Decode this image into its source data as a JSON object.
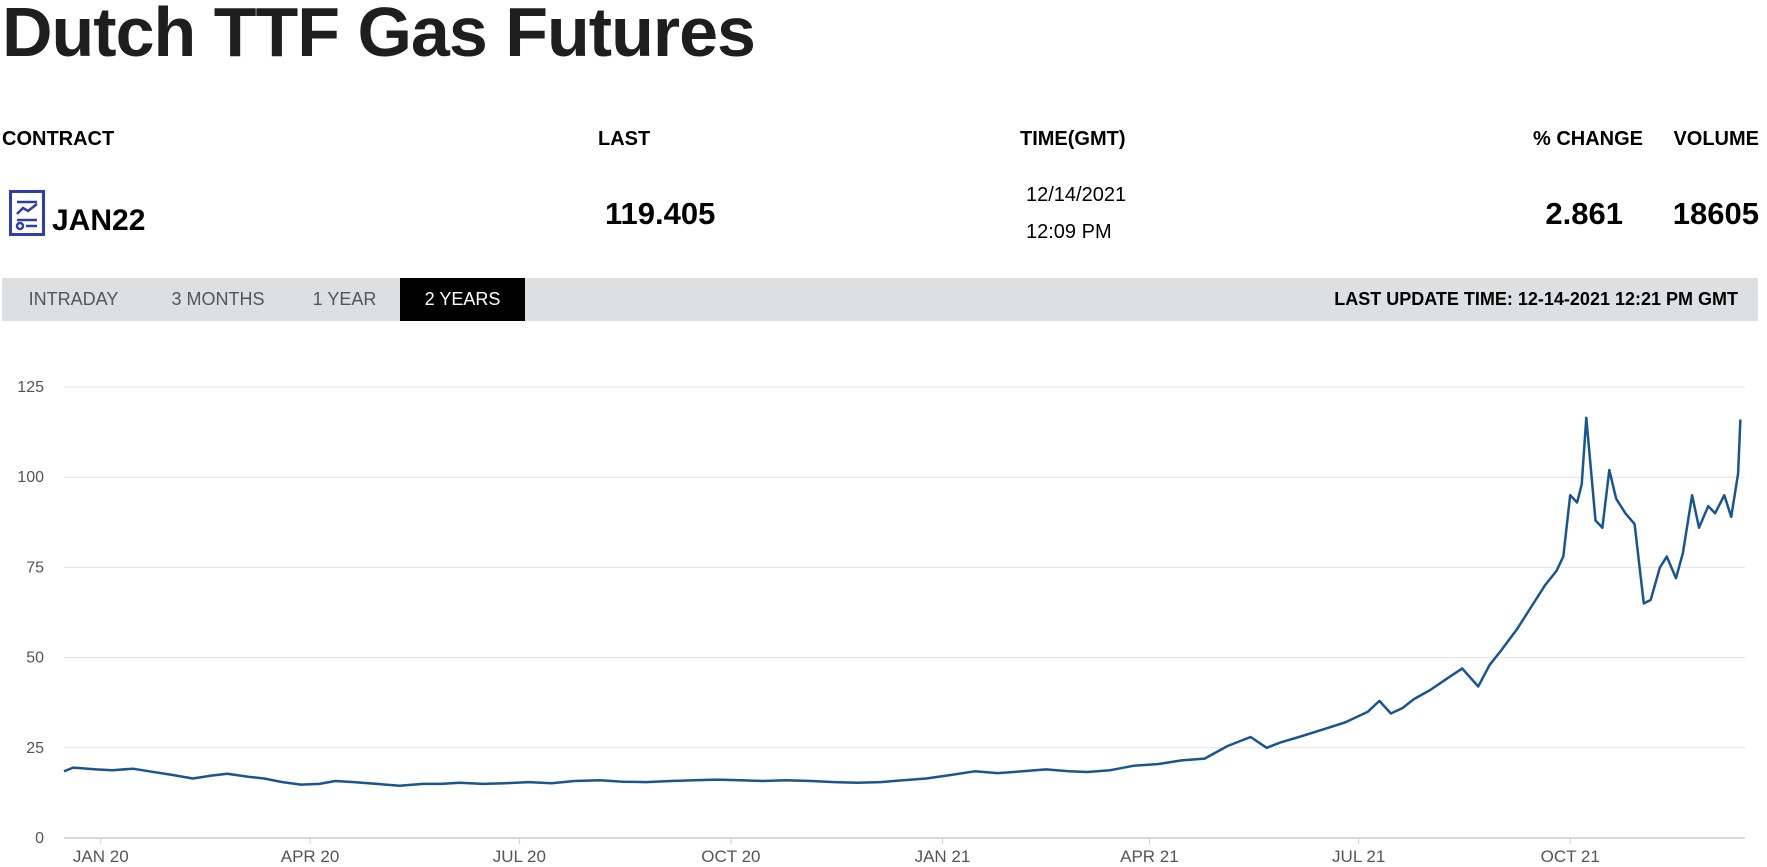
{
  "page": {
    "title": "Dutch TTF Gas Futures"
  },
  "quote": {
    "headers": {
      "contract": "CONTRACT",
      "last": "LAST",
      "time": "TIME(GMT)",
      "pct_change": "% CHANGE",
      "volume": "VOLUME"
    },
    "contract": "JAN22",
    "contract_icon": "chart-document-icon",
    "last": "119.405",
    "date": "12/14/2021",
    "time": "12:09 PM",
    "pct_change": "2.861",
    "volume": "18605"
  },
  "tabs": {
    "items": [
      {
        "label": "INTRADAY",
        "active": false
      },
      {
        "label": "3 MONTHS",
        "active": false
      },
      {
        "label": "1 YEAR",
        "active": false
      },
      {
        "label": "2 YEARS",
        "active": true
      }
    ],
    "active_bg": "#000000",
    "bar_bg": "#dedfe1"
  },
  "last_update": "LAST UPDATE TIME: 12-14-2021 12:21 PM GMT",
  "chart_data": {
    "type": "line",
    "title": "",
    "xlabel": "",
    "ylabel": "",
    "ylim": [
      0,
      125
    ],
    "yticks": [
      0,
      25,
      50,
      75,
      100,
      125
    ],
    "xlim": [
      "2019-12-16",
      "2021-12-16"
    ],
    "xticks": [
      {
        "date": "2020-01-01",
        "label": "JAN 20"
      },
      {
        "date": "2020-04-01",
        "label": "APR 20"
      },
      {
        "date": "2020-07-01",
        "label": "JUL 20"
      },
      {
        "date": "2020-10-01",
        "label": "OCT 20"
      },
      {
        "date": "2021-01-01",
        "label": "JAN 21"
      },
      {
        "date": "2021-04-01",
        "label": "APR 21"
      },
      {
        "date": "2021-07-01",
        "label": "JUL 21"
      },
      {
        "date": "2021-10-01",
        "label": "OCT 21"
      }
    ],
    "grid": true,
    "line_color": "#1a5590",
    "series": [
      {
        "x": [
          "2019-12-16",
          "2019-12-20",
          "2019-12-30",
          "2020-01-06",
          "2020-01-15",
          "2020-01-22",
          "2020-02-01",
          "2020-02-10",
          "2020-02-18",
          "2020-02-25",
          "2020-03-05",
          "2020-03-12",
          "2020-03-20",
          "2020-03-28",
          "2020-04-05",
          "2020-04-12",
          "2020-04-20",
          "2020-04-30",
          "2020-05-10",
          "2020-05-20",
          "2020-05-28",
          "2020-06-05",
          "2020-06-15",
          "2020-06-25",
          "2020-07-05",
          "2020-07-15",
          "2020-07-25",
          "2020-08-05",
          "2020-08-15",
          "2020-08-25",
          "2020-09-05",
          "2020-09-15",
          "2020-09-25",
          "2020-10-05",
          "2020-10-15",
          "2020-10-25",
          "2020-11-05",
          "2020-11-15",
          "2020-11-25",
          "2020-12-05",
          "2020-12-15",
          "2020-12-25",
          "2021-01-05",
          "2021-01-15",
          "2021-01-25",
          "2021-02-05",
          "2021-02-15",
          "2021-02-25",
          "2021-03-05",
          "2021-03-15",
          "2021-03-25",
          "2021-04-05",
          "2021-04-15",
          "2021-04-25",
          "2021-05-05",
          "2021-05-15",
          "2021-05-22",
          "2021-05-28",
          "2021-06-05",
          "2021-06-15",
          "2021-06-25",
          "2021-07-05",
          "2021-07-10",
          "2021-07-15",
          "2021-07-20",
          "2021-07-25",
          "2021-08-01",
          "2021-08-08",
          "2021-08-15",
          "2021-08-22",
          "2021-08-27",
          "2021-09-01",
          "2021-09-08",
          "2021-09-15",
          "2021-09-20",
          "2021-09-25",
          "2021-09-28",
          "2021-10-01",
          "2021-10-04",
          "2021-10-06",
          "2021-10-08",
          "2021-10-12",
          "2021-10-15",
          "2021-10-18",
          "2021-10-21",
          "2021-10-25",
          "2021-10-29",
          "2021-11-02",
          "2021-11-05",
          "2021-11-09",
          "2021-11-12",
          "2021-11-16",
          "2021-11-19",
          "2021-11-23",
          "2021-11-26",
          "2021-11-30",
          "2021-12-03",
          "2021-12-07",
          "2021-12-10",
          "2021-12-13",
          "2021-12-14"
        ],
        "y": [
          18.5,
          19.5,
          19.0,
          18.8,
          19.2,
          18.5,
          17.5,
          16.5,
          17.3,
          17.8,
          17.0,
          16.5,
          15.5,
          14.8,
          15.0,
          15.8,
          15.5,
          15.0,
          14.5,
          15.0,
          15.0,
          15.3,
          15.0,
          15.2,
          15.5,
          15.2,
          15.8,
          16.0,
          15.6,
          15.5,
          15.8,
          16.0,
          16.2,
          16.0,
          15.8,
          16.0,
          15.8,
          15.5,
          15.3,
          15.5,
          16.0,
          16.5,
          17.5,
          18.5,
          18.0,
          18.5,
          19.0,
          18.5,
          18.3,
          18.8,
          20.0,
          20.5,
          21.5,
          22.0,
          25.5,
          28.0,
          25.0,
          26.5,
          28.0,
          30.0,
          32.0,
          35.0,
          38.0,
          34.5,
          36.0,
          38.5,
          41.0,
          44.0,
          47.0,
          42.0,
          48.0,
          52.0,
          58.0,
          65.0,
          70.0,
          74.0,
          78.0,
          95.0,
          93.0,
          98.0,
          116.5,
          88.0,
          86.0,
          102.0,
          94.0,
          90.0,
          87.0,
          65.0,
          66.0,
          75.0,
          78.0,
          72.0,
          79.0,
          95.0,
          86.0,
          92.0,
          90.0,
          95.0,
          89.0,
          101.0,
          116.0
        ]
      }
    ]
  }
}
